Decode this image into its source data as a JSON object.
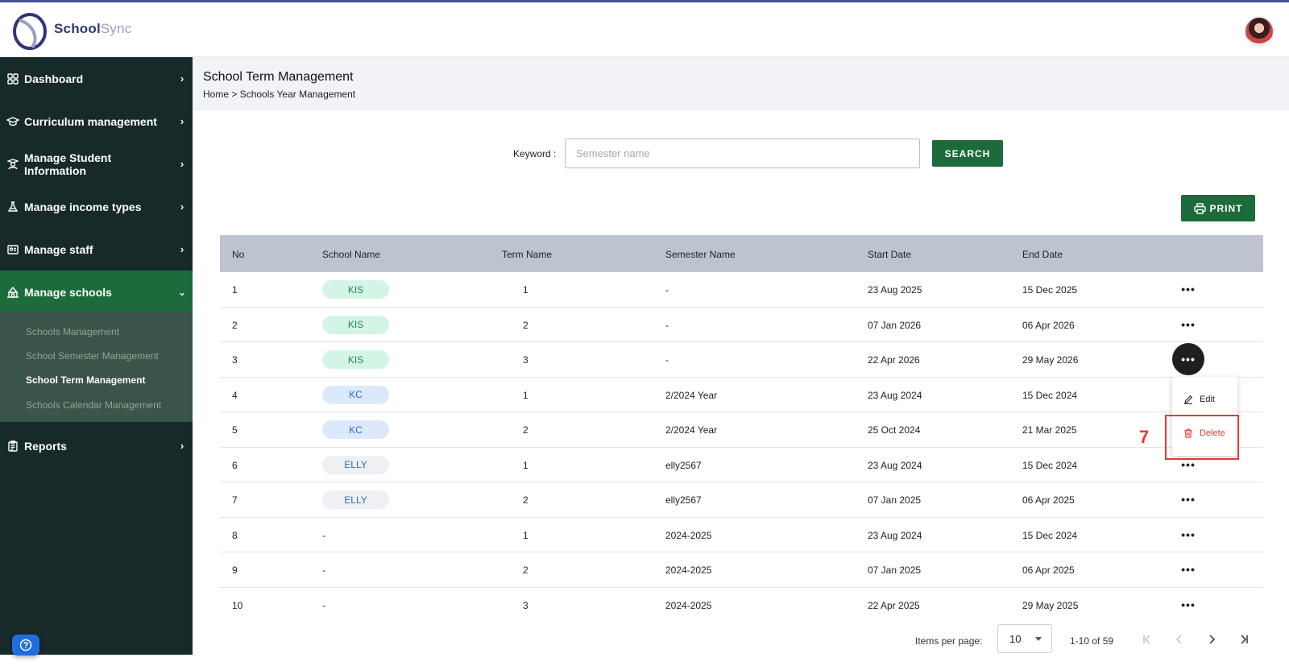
{
  "brand": {
    "name_bold": "School",
    "name_light": "Sync"
  },
  "sidebar": {
    "items": [
      {
        "label": "Dashboard",
        "icon": "grid-icon"
      },
      {
        "label": "Curriculum management",
        "icon": "graduation-cap-icon"
      },
      {
        "label": "Manage Student Information",
        "icon": "student-icon"
      },
      {
        "label": "Manage income types",
        "icon": "flask-icon"
      },
      {
        "label": "Manage staff",
        "icon": "id-card-icon"
      },
      {
        "label": "Manage schools",
        "icon": "school-icon"
      },
      {
        "label": "Reports",
        "icon": "clipboard-icon"
      }
    ],
    "submenu": [
      {
        "label": "Schools Management"
      },
      {
        "label": "School Semester Management"
      },
      {
        "label": "School Term Management"
      },
      {
        "label": "Schools Calendar Management"
      }
    ]
  },
  "page": {
    "title": "School Term Management",
    "breadcrumb": "Home > Schools Year Management"
  },
  "search": {
    "keyword_label": "Keyword :",
    "placeholder": "Semester name",
    "value": "",
    "button": "SEARCH"
  },
  "print_button": "PRINT",
  "table": {
    "headers": [
      "No",
      "School Name",
      "Term Name",
      "Semester Name",
      "Start Date",
      "End Date"
    ],
    "rows": [
      {
        "no": "1",
        "school": "KIS",
        "term": "1",
        "semester": "-",
        "start": "23 Aug 2025",
        "end": "15 Dec 2025"
      },
      {
        "no": "2",
        "school": "KIS",
        "term": "2",
        "semester": "-",
        "start": "07 Jan 2026",
        "end": "06 Apr 2026"
      },
      {
        "no": "3",
        "school": "KIS",
        "term": "3",
        "semester": "-",
        "start": "22 Apr 2026",
        "end": "29 May 2026"
      },
      {
        "no": "4",
        "school": "KC",
        "term": "1",
        "semester": "2/2024 Year",
        "start": "23 Aug 2024",
        "end": "15 Dec 2024"
      },
      {
        "no": "5",
        "school": "KC",
        "term": "2",
        "semester": "2/2024 Year",
        "start": "25 Oct 2024",
        "end": "21 Mar 2025"
      },
      {
        "no": "6",
        "school": "ELLY",
        "term": "1",
        "semester": "elly2567",
        "start": "23 Aug 2024",
        "end": "15 Dec 2024"
      },
      {
        "no": "7",
        "school": "ELLY",
        "term": "2",
        "semester": "elly2567",
        "start": "07 Jan 2025",
        "end": "06 Apr 2025"
      },
      {
        "no": "8",
        "school": "-",
        "term": "1",
        "semester": "2024-2025",
        "start": "23 Aug 2024",
        "end": "15 Dec 2024"
      },
      {
        "no": "9",
        "school": "-",
        "term": "2",
        "semester": "2024-2025",
        "start": "07 Jan 2025",
        "end": "06 Apr 2025"
      },
      {
        "no": "10",
        "school": "-",
        "term": "3",
        "semester": "2024-2025",
        "start": "22 Apr 2025",
        "end": "29 May 2025"
      }
    ],
    "more_glyph": "•••"
  },
  "row_menu": {
    "edit": "Edit",
    "delete": "Delete"
  },
  "annotation": {
    "step": "7"
  },
  "pagination": {
    "items_per_page_label": "Items per page:",
    "per_page_value": "10",
    "range": "1-10 of 59"
  },
  "colors": {
    "primary": "#1c6b3b",
    "sidebar": "#18292a",
    "danger": "#e53935"
  }
}
